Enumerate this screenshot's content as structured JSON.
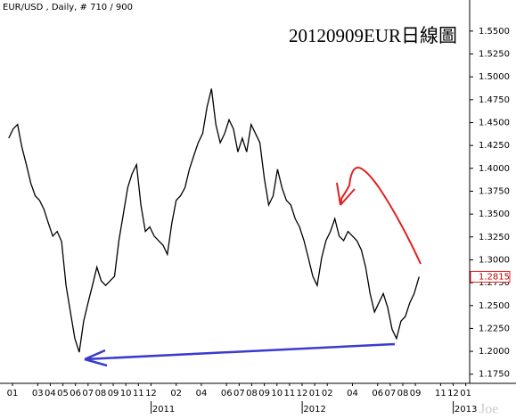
{
  "chart_data": {
    "type": "line",
    "title": "EUR/USD , Daily, # 710 / 900",
    "subtitle": "20120909EUR日線圖",
    "watermark": "Joe",
    "x": [
      -0.3,
      0.05,
      0.4,
      0.75,
      1.1,
      1.45,
      1.8,
      2.15,
      2.5,
      2.85,
      3.2,
      3.55,
      3.9,
      4.25,
      4.6,
      4.95,
      5.3,
      5.65,
      6.0,
      6.35,
      6.7,
      7.05,
      7.4,
      7.75,
      8.1,
      8.45,
      8.8,
      9.15,
      9.5,
      9.85,
      10.2,
      10.55,
      10.9,
      11.25,
      11.6,
      11.95,
      12.3,
      12.65,
      13.0,
      13.35,
      13.7,
      14.05,
      14.4,
      14.75,
      15.1,
      15.45,
      15.8,
      16.15,
      16.5,
      16.85,
      17.2,
      17.55,
      17.9,
      18.25,
      18.6,
      18.95,
      19.3,
      19.65,
      20.0,
      20.35,
      20.7,
      21.05,
      21.4,
      21.75,
      22.1,
      22.45,
      22.8,
      23.15,
      23.5,
      23.85,
      24.2,
      24.55,
      24.9,
      25.25,
      25.6,
      25.95,
      26.3,
      26.65,
      27.0,
      27.35,
      27.7,
      28.05,
      28.4,
      28.75,
      29.1,
      29.45,
      29.8,
      30.15,
      30.5,
      30.85,
      31.2,
      31.55,
      31.9,
      32.3
    ],
    "series": [
      {
        "name": "EUR/USD",
        "color": "#000000",
        "values": [
          1.433,
          1.443,
          1.448,
          1.423,
          1.404,
          1.384,
          1.37,
          1.365,
          1.355,
          1.34,
          1.326,
          1.331,
          1.32,
          1.272,
          1.243,
          1.214,
          1.199,
          1.233,
          1.253,
          1.272,
          1.292,
          1.277,
          1.272,
          1.277,
          1.282,
          1.321,
          1.35,
          1.379,
          1.394,
          1.404,
          1.36,
          1.331,
          1.336,
          1.326,
          1.321,
          1.316,
          1.306,
          1.34,
          1.365,
          1.37,
          1.379,
          1.399,
          1.414,
          1.428,
          1.438,
          1.467,
          1.487,
          1.448,
          1.428,
          1.438,
          1.453,
          1.443,
          1.418,
          1.433,
          1.418,
          1.448,
          1.438,
          1.428,
          1.389,
          1.36,
          1.37,
          1.399,
          1.379,
          1.365,
          1.36,
          1.345,
          1.336,
          1.321,
          1.302,
          1.282,
          1.272,
          1.302,
          1.321,
          1.331,
          1.345,
          1.326,
          1.321,
          1.331,
          1.326,
          1.321,
          1.311,
          1.292,
          1.263,
          1.243,
          1.253,
          1.263,
          1.248,
          1.224,
          1.214,
          1.233,
          1.238,
          1.253,
          1.263,
          1.2815
        ]
      }
    ],
    "current_price": {
      "value": 1.2815,
      "label": "1.2815"
    },
    "xlim": [
      -0.64,
      36.31
    ],
    "xticks": [
      {
        "value": 0,
        "label": "01"
      },
      {
        "value": 2,
        "label": "03"
      },
      {
        "value": 3,
        "label": "04"
      },
      {
        "value": 4,
        "label": "05"
      },
      {
        "value": 5,
        "label": "06"
      },
      {
        "value": 6,
        "label": "07"
      },
      {
        "value": 7,
        "label": "08"
      },
      {
        "value": 8,
        "label": "09"
      },
      {
        "value": 9,
        "label": "10"
      },
      {
        "value": 10,
        "label": "11"
      },
      {
        "value": 11,
        "label": "12"
      },
      {
        "value": 13,
        "label": "02"
      },
      {
        "value": 15,
        "label": "04"
      },
      {
        "value": 17,
        "label": "06"
      },
      {
        "value": 18,
        "label": "07"
      },
      {
        "value": 19,
        "label": "08"
      },
      {
        "value": 20,
        "label": "09"
      },
      {
        "value": 21,
        "label": "10"
      },
      {
        "value": 22,
        "label": "11"
      },
      {
        "value": 23,
        "label": "12"
      },
      {
        "value": 24,
        "label": "01"
      },
      {
        "value": 25,
        "label": "02"
      },
      {
        "value": 27,
        "label": "04"
      },
      {
        "value": 29,
        "label": "06"
      },
      {
        "value": 30,
        "label": "07"
      },
      {
        "value": 31,
        "label": "08"
      },
      {
        "value": 32,
        "label": "09"
      },
      {
        "value": 34,
        "label": "11"
      },
      {
        "value": 35,
        "label": "12"
      },
      {
        "value": 36,
        "label": "01"
      }
    ],
    "year_ticks": [
      {
        "value": 12,
        "label": "2011"
      },
      {
        "value": 24,
        "label": "2012"
      },
      {
        "value": 36,
        "label": "2013"
      }
    ],
    "ylim": [
      1.165,
      1.584
    ],
    "yticks": [
      {
        "value": 1.175,
        "label": "1.1750"
      },
      {
        "value": 1.2,
        "label": "1.2000"
      },
      {
        "value": 1.225,
        "label": "1.2250"
      },
      {
        "value": 1.25,
        "label": "1.2500"
      },
      {
        "value": 1.275,
        "label": "1.2750"
      },
      {
        "value": 1.3,
        "label": "1.3000"
      },
      {
        "value": 1.325,
        "label": "1.3250"
      },
      {
        "value": 1.35,
        "label": "1.3500"
      },
      {
        "value": 1.375,
        "label": "1.3750"
      },
      {
        "value": 1.4,
        "label": "1.4000"
      },
      {
        "value": 1.425,
        "label": "1.4250"
      },
      {
        "value": 1.45,
        "label": "1.4500"
      },
      {
        "value": 1.475,
        "label": "1.4750"
      },
      {
        "value": 1.5,
        "label": "1.5000"
      },
      {
        "value": 1.525,
        "label": "1.5250"
      },
      {
        "value": 1.55,
        "label": "1.5500"
      }
    ],
    "grid": false
  }
}
